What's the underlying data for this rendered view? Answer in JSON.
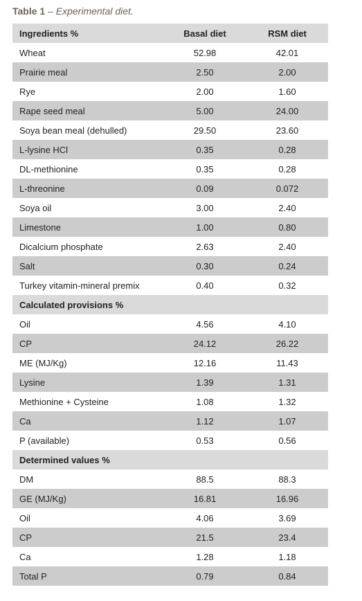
{
  "title": {
    "label": "Table 1",
    "caption": "– Experimental diet."
  },
  "table": {
    "header": [
      "Ingredients %",
      "Basal diet",
      "RSM diet"
    ],
    "rows": [
      [
        "Wheat",
        "52.98",
        "42.01"
      ],
      [
        "Prairie meal",
        "2.50",
        "2.00"
      ],
      [
        "Rye",
        "2.00",
        "1.60"
      ],
      [
        "Rape seed meal",
        "5.00",
        "24.00"
      ],
      [
        "Soya bean meal (dehulled)",
        "29.50",
        "23.60"
      ],
      [
        "L-lysine HCl",
        "0.35",
        "0.28"
      ],
      [
        "DL-methionine",
        "0.35",
        "0.28"
      ],
      [
        "L-threonine",
        "0.09",
        "0.072"
      ],
      [
        "Soya oil",
        "3.00",
        "2.40"
      ],
      [
        "Limestone",
        "1.00",
        "0.80"
      ],
      [
        "Dicalcium phosphate",
        "2.63",
        "2.40"
      ],
      [
        "Salt",
        "0.30",
        "0.24"
      ],
      [
        "Turkey vitamin-mineral premix",
        "0.40",
        "0.32"
      ],
      [
        "Calculated provisions %"
      ],
      [
        "Oil",
        "4.56",
        "4.10"
      ],
      [
        "CP",
        "24.12",
        "26.22"
      ],
      [
        "ME (MJ/Kg)",
        "12.16",
        "11.43"
      ],
      [
        "Lysine",
        "1.39",
        "1.31"
      ],
      [
        "Methionine + Cysteine",
        "1.08",
        "1.32"
      ],
      [
        "Ca",
        "1.12",
        "1.07"
      ],
      [
        "P (available)",
        "0.53",
        "0.56"
      ],
      [
        "Determined values %"
      ],
      [
        "DM",
        "88.5",
        "88.3"
      ],
      [
        "GE (MJ/Kg)",
        "16.81",
        "16.96"
      ],
      [
        "Oil",
        "4.06",
        "3.69"
      ],
      [
        "CP",
        "21.5",
        "23.4"
      ],
      [
        "Ca",
        "1.28",
        "1.18"
      ],
      [
        "Total P",
        "0.79",
        "0.84"
      ]
    ]
  }
}
